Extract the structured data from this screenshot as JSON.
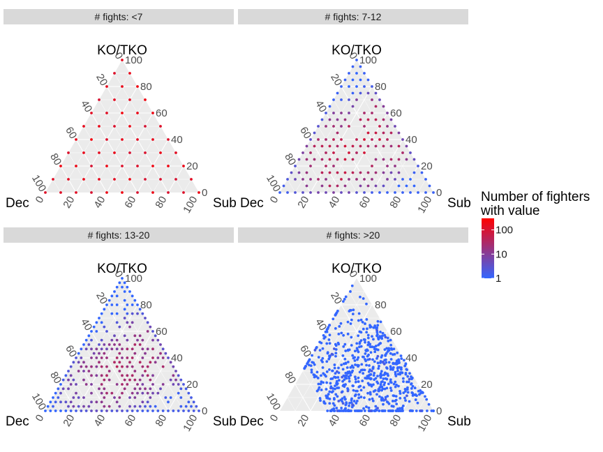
{
  "chart_data": {
    "type": "scatter",
    "subtype": "ternary",
    "facet_variable": "# fights",
    "facets": [
      {
        "label": "# fights: <7",
        "grid_step": 10,
        "base_count": 150,
        "count_floor": 2,
        "spread": 0.3,
        "fill_fraction": 1.0,
        "jitter": 0.0,
        "bias": "none",
        "seed": 11
      },
      {
        "label": "# fights: 7-12",
        "grid_step": 5,
        "base_count": 80,
        "count_floor": 1,
        "spread": 0.5,
        "fill_fraction": 0.75,
        "jitter": 0.0,
        "bias": "none",
        "seed": 23
      },
      {
        "label": "# fights: 13-20",
        "grid_step": 3.34,
        "base_count": 40,
        "count_floor": 1,
        "spread": 0.7,
        "fill_fraction": 0.55,
        "jitter": 0.0,
        "bias": "sub",
        "seed": 37
      },
      {
        "label": "# fights: >20",
        "grid_step": 0,
        "base_count": 1,
        "count_floor": 1,
        "spread": 0.2,
        "fill_fraction": 1.0,
        "jitter": 1.0,
        "bias": "dec-low",
        "points": 700,
        "seed": 51
      }
    ],
    "axes": {
      "top": "KO/TKO",
      "left": "Dec",
      "right": "Sub",
      "range": [
        0,
        100
      ],
      "ticks": [
        "0",
        "20",
        "40",
        "60",
        "80",
        "100"
      ]
    },
    "color_scale": {
      "title_line1": "Number of fighters",
      "title_line2": "with value",
      "transform": "log10",
      "breaks": [
        {
          "value": 100,
          "label": "100"
        },
        {
          "value": 10,
          "label": "10"
        },
        {
          "value": 1,
          "label": "1"
        }
      ],
      "limits": [
        1,
        300
      ],
      "low_color": "#3366ff",
      "high_color": "#ff0000"
    },
    "panel_background": "#ebebeb",
    "grid": true,
    "legend_position": "right"
  }
}
